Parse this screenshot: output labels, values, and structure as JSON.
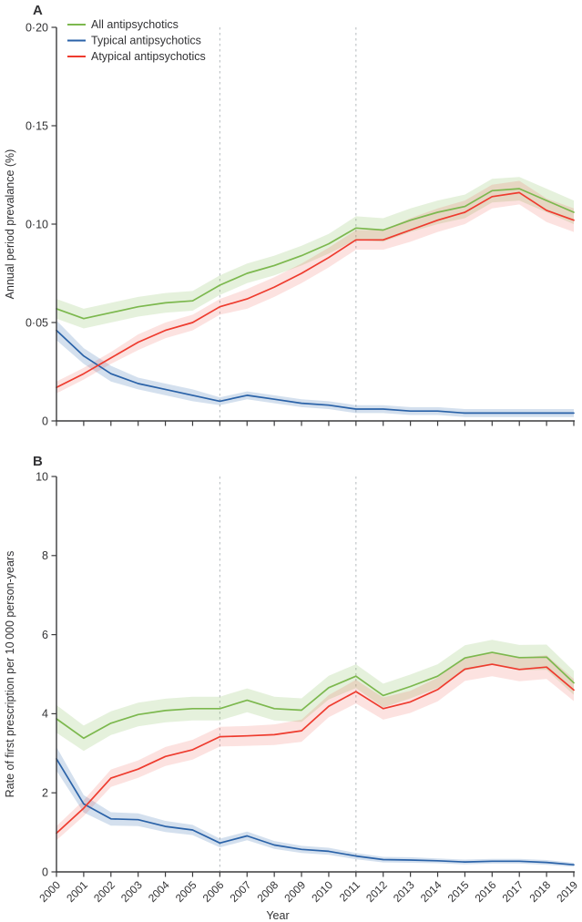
{
  "figure_title": "",
  "palette": {
    "all": "#7cb84e",
    "typical": "#2a62a8",
    "atypical": "#ee3b2e",
    "band_opacity": {
      "all": 0.2,
      "typical": 0.2,
      "atypical": 0.15
    },
    "vline": "#b5babe",
    "axis": "#3b3b3d",
    "text": "#323234"
  },
  "legend": {
    "items": [
      {
        "key": "all",
        "label": "All antipsychotics"
      },
      {
        "key": "typical",
        "label": "Typical antipsychotics"
      },
      {
        "key": "atypical",
        "label": "Atypical antipsychotics"
      }
    ]
  },
  "chart_data": [
    {
      "type": "line",
      "panel_label": "A",
      "ylabel": "Annual period prevalance (%)",
      "xlabel": "",
      "ylim": [
        0,
        0.2
      ],
      "yticks": [
        {
          "value": 0,
          "label": "0"
        },
        {
          "value": 0.05,
          "label": "0·05"
        },
        {
          "value": 0.1,
          "label": "0·10"
        },
        {
          "value": 0.15,
          "label": "0·15"
        },
        {
          "value": 0.2,
          "label": "0·20"
        }
      ],
      "x": [
        2000,
        2001,
        2002,
        2003,
        2004,
        2005,
        2006,
        2007,
        2008,
        2009,
        2010,
        2011,
        2012,
        2013,
        2014,
        2015,
        2016,
        2017,
        2018,
        2019
      ],
      "x_tick_labels": false,
      "vlines": [
        2006,
        2011
      ],
      "grid": false,
      "legend_position": "top-left-inside",
      "series": [
        {
          "key": "all",
          "name": "All antipsychotics",
          "values": [
            0.057,
            0.052,
            0.055,
            0.058,
            0.06,
            0.061,
            0.069,
            0.075,
            0.079,
            0.084,
            0.09,
            0.098,
            0.097,
            0.102,
            0.106,
            0.109,
            0.117,
            0.118,
            0.112,
            0.106
          ],
          "ci": [
            0.005,
            0.005,
            0.005,
            0.005,
            0.005,
            0.005,
            0.005,
            0.005,
            0.005,
            0.005,
            0.005,
            0.006,
            0.006,
            0.006,
            0.006,
            0.006,
            0.006,
            0.006,
            0.006,
            0.006
          ]
        },
        {
          "key": "typical",
          "name": "Typical antipsychotics",
          "values": [
            0.046,
            0.033,
            0.024,
            0.019,
            0.016,
            0.013,
            0.01,
            0.013,
            0.011,
            0.009,
            0.008,
            0.006,
            0.006,
            0.005,
            0.005,
            0.004,
            0.004,
            0.004,
            0.004,
            0.004
          ],
          "ci": [
            0.005,
            0.004,
            0.004,
            0.003,
            0.003,
            0.003,
            0.002,
            0.002,
            0.002,
            0.002,
            0.002,
            0.002,
            0.002,
            0.002,
            0.002,
            0.002,
            0.002,
            0.002,
            0.002,
            0.002
          ]
        },
        {
          "key": "atypical",
          "name": "Atypical antipsychotics",
          "values": [
            0.017,
            0.024,
            0.032,
            0.04,
            0.046,
            0.05,
            0.058,
            0.062,
            0.068,
            0.075,
            0.083,
            0.092,
            0.092,
            0.097,
            0.102,
            0.106,
            0.114,
            0.116,
            0.107,
            0.102
          ],
          "ci": [
            0.003,
            0.003,
            0.003,
            0.004,
            0.004,
            0.004,
            0.004,
            0.005,
            0.005,
            0.005,
            0.005,
            0.005,
            0.005,
            0.006,
            0.006,
            0.006,
            0.006,
            0.006,
            0.006,
            0.006
          ]
        }
      ]
    },
    {
      "type": "line",
      "panel_label": "B",
      "ylabel": "Rate of first prescription per 10 000 person-years",
      "xlabel": "Year",
      "ylim": [
        0,
        10
      ],
      "yticks": [
        {
          "value": 0,
          "label": "0"
        },
        {
          "value": 2,
          "label": "2"
        },
        {
          "value": 4,
          "label": "4"
        },
        {
          "value": 6,
          "label": "6"
        },
        {
          "value": 8,
          "label": "8"
        },
        {
          "value": 10,
          "label": "10"
        }
      ],
      "x": [
        2000,
        2001,
        2002,
        2003,
        2004,
        2005,
        2006,
        2007,
        2008,
        2009,
        2010,
        2011,
        2012,
        2013,
        2014,
        2015,
        2016,
        2017,
        2018,
        2019
      ],
      "x_tick_labels": true,
      "vlines": [
        2006,
        2011
      ],
      "grid": false,
      "legend_position": "none",
      "series": [
        {
          "key": "all",
          "name": "All antipsychotics",
          "values": [
            3.87,
            3.38,
            3.76,
            3.98,
            4.08,
            4.13,
            4.13,
            4.34,
            4.13,
            4.09,
            4.66,
            4.95,
            4.46,
            4.69,
            4.95,
            5.41,
            5.55,
            5.42,
            5.43,
            4.78
          ],
          "ci": [
            0.35,
            0.32,
            0.3,
            0.3,
            0.3,
            0.3,
            0.3,
            0.3,
            0.3,
            0.3,
            0.3,
            0.3,
            0.3,
            0.3,
            0.3,
            0.32,
            0.32,
            0.32,
            0.32,
            0.3
          ]
        },
        {
          "key": "typical",
          "name": "Typical antipsychotics",
          "values": [
            2.86,
            1.72,
            1.34,
            1.32,
            1.15,
            1.06,
            0.73,
            0.91,
            0.68,
            0.57,
            0.52,
            0.4,
            0.31,
            0.3,
            0.28,
            0.25,
            0.27,
            0.27,
            0.24,
            0.18
          ],
          "ci": [
            0.3,
            0.22,
            0.17,
            0.16,
            0.14,
            0.13,
            0.11,
            0.11,
            0.1,
            0.09,
            0.09,
            0.08,
            0.07,
            0.07,
            0.06,
            0.06,
            0.06,
            0.06,
            0.06,
            0.05
          ]
        },
        {
          "key": "atypical",
          "name": "Atypical antipsychotics",
          "values": [
            0.98,
            1.61,
            2.37,
            2.6,
            2.92,
            3.09,
            3.42,
            3.44,
            3.47,
            3.57,
            4.19,
            4.56,
            4.13,
            4.3,
            4.61,
            5.13,
            5.25,
            5.12,
            5.18,
            4.6
          ],
          "ci": [
            0.18,
            0.2,
            0.22,
            0.22,
            0.24,
            0.25,
            0.25,
            0.25,
            0.26,
            0.28,
            0.28,
            0.3,
            0.28,
            0.28,
            0.3,
            0.3,
            0.3,
            0.3,
            0.3,
            0.28
          ]
        }
      ]
    }
  ]
}
